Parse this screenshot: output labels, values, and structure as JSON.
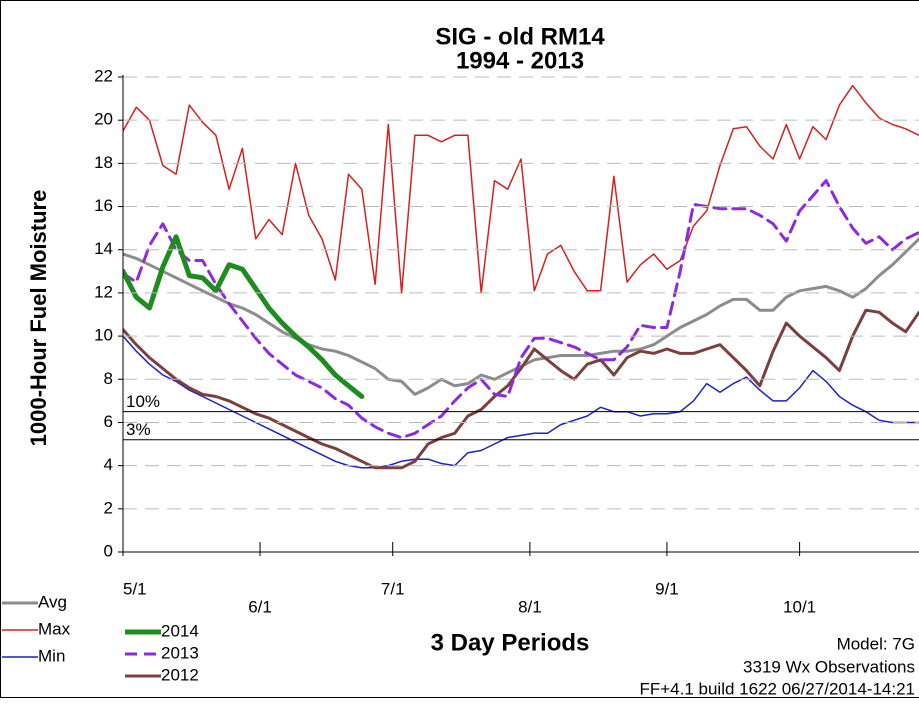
{
  "chart_data": {
    "type": "line",
    "title": "SIG - old RM14",
    "subtitle": "1994 - 2013",
    "y_label": "1000-Hour Fuel Moisture",
    "x_label": "3 Day Periods",
    "annotations": [
      "Model: 7G",
      "3319 Wx Observations",
      "FF+4.1 build 1622 06/27/2014-14:21"
    ],
    "x": [
      0,
      1,
      2,
      3,
      4,
      5,
      6,
      7,
      8,
      9,
      10,
      11,
      12,
      13,
      14,
      15,
      16,
      17,
      18,
      19,
      20,
      21,
      22,
      23,
      24,
      25,
      26,
      27,
      28,
      29,
      30,
      31,
      32,
      33,
      34,
      35,
      36,
      37,
      38,
      39,
      40,
      41,
      42,
      43,
      44,
      45,
      46,
      47,
      48,
      49,
      50,
      51,
      52,
      53,
      54,
      55,
      56,
      57,
      58,
      59,
      60
    ],
    "xlim": [
      0,
      60
    ],
    "xticks": [
      {
        "value": 0,
        "label": "5/1"
      },
      {
        "value": 10.33,
        "label": "6/1"
      },
      {
        "value": 20.33,
        "label": "7/1"
      },
      {
        "value": 30.67,
        "label": "8/1"
      },
      {
        "value": 41,
        "label": "9/1"
      },
      {
        "value": 51,
        "label": "10/1"
      }
    ],
    "ylim": [
      0,
      22
    ],
    "yticks": [
      0,
      2,
      4,
      6,
      8,
      10,
      12,
      14,
      16,
      18,
      20,
      22
    ],
    "grid": true,
    "legend": "bottom-left",
    "reference_lines": [
      {
        "value": 6.5,
        "label": "10%"
      },
      {
        "value": 5.2,
        "label": "3%"
      }
    ],
    "series": [
      {
        "name": "Avg",
        "color": "#8c8c8c",
        "width": 3,
        "dash": false,
        "values": [
          13.8,
          13.6,
          13.3,
          13.0,
          12.7,
          12.4,
          12.1,
          11.8,
          11.5,
          11.3,
          11.0,
          10.6,
          10.2,
          9.9,
          9.6,
          9.4,
          9.3,
          9.1,
          8.8,
          8.5,
          8.0,
          7.9,
          7.3,
          7.6,
          8.0,
          7.7,
          7.8,
          8.2,
          8.0,
          8.3,
          8.6,
          8.9,
          9.0,
          9.1,
          9.1,
          9.1,
          9.2,
          9.3,
          9.3,
          9.4,
          9.6,
          10.0,
          10.4,
          10.7,
          11.0,
          11.4,
          11.7,
          11.7,
          11.2,
          11.2,
          11.8,
          12.1,
          12.2,
          12.3,
          12.1,
          11.8,
          12.2,
          12.8,
          13.3,
          13.9,
          14.5
        ]
      },
      {
        "name": "Max",
        "color": "#d42020",
        "width": 1.5,
        "dash": false,
        "values": [
          19.5,
          20.6,
          20,
          17.9,
          17.5,
          20.7,
          19.9,
          19.3,
          16.8,
          18.7,
          14.5,
          15.4,
          14.7,
          18,
          15.6,
          14.5,
          12.6,
          17.5,
          16.8,
          12.4,
          19.8,
          12,
          19.3,
          19.3,
          19,
          19.3,
          19.3,
          12,
          17.2,
          16.8,
          18.2,
          12.1,
          13.8,
          14.2,
          13,
          12.1,
          12.1,
          17.4,
          12.5,
          13.3,
          13.8,
          13.1,
          13.5,
          15.1,
          15.8,
          17.9,
          19.6,
          19.7,
          18.8,
          18.2,
          19.8,
          18.2,
          19.7,
          19.1,
          20.7,
          21.6,
          20.8,
          20.1,
          19.8,
          19.6,
          19.3
        ]
      },
      {
        "name": "Min",
        "color": "#1c22c4",
        "width": 1.5,
        "dash": false,
        "values": [
          10.0,
          9.3,
          8.7,
          8.2,
          7.9,
          7.5,
          7.2,
          6.9,
          6.6,
          6.3,
          6.0,
          5.7,
          5.4,
          5.1,
          4.8,
          4.5,
          4.2,
          4.0,
          3.9,
          3.9,
          4.0,
          4.2,
          4.3,
          4.3,
          4.1,
          4.0,
          4.6,
          4.7,
          5.0,
          5.3,
          5.4,
          5.5,
          5.5,
          5.9,
          6.1,
          6.3,
          6.7,
          6.5,
          6.5,
          6.3,
          6.4,
          6.4,
          6.5,
          7.0,
          7.8,
          7.4,
          7.8,
          8.1,
          7.5,
          7.0,
          7.0,
          7.6,
          8.4,
          7.9,
          7.2,
          6.8,
          6.5,
          6.1,
          6.0,
          6.0,
          6.0
        ]
      },
      {
        "name": "2014",
        "color": "#1e8c1e",
        "width": 5,
        "dash": false,
        "values": [
          13.0,
          11.8,
          11.3,
          13.2,
          14.6,
          12.8,
          12.7,
          12.1,
          13.3,
          13.1,
          12.2,
          11.3,
          10.6,
          10.0,
          9.5,
          8.9,
          8.2,
          7.7,
          7.2,
          null,
          null,
          null,
          null,
          null,
          null,
          null,
          null,
          null,
          null,
          null,
          null,
          null,
          null,
          null,
          null,
          null,
          null,
          null,
          null,
          null,
          null,
          null,
          null,
          null,
          null,
          null,
          null,
          null,
          null,
          null,
          null,
          null,
          null,
          null,
          null,
          null,
          null,
          null,
          null,
          null,
          null
        ]
      },
      {
        "name": "2013",
        "color": "#8a2be2",
        "width": 3,
        "dash": true,
        "values": [
          12.9,
          12.5,
          14.2,
          15.2,
          14.0,
          13.5,
          13.5,
          12.4,
          11.5,
          10.7,
          9.9,
          9.2,
          8.7,
          8.2,
          7.9,
          7.6,
          7.1,
          6.8,
          6.2,
          5.8,
          5.5,
          5.3,
          5.5,
          5.9,
          6.3,
          7.0,
          7.6,
          8.0,
          7.3,
          7.2,
          9.0,
          9.9,
          9.9,
          9.7,
          9.5,
          9.2,
          8.9,
          8.9,
          9.5,
          10.5,
          10.4,
          10.4,
          13.0,
          16.1,
          16.0,
          15.9,
          15.9,
          15.9,
          15.6,
          15.2,
          14.4,
          15.8,
          16.5,
          17.2,
          16.0,
          15.0,
          14.3,
          14.6,
          14.0,
          14.5,
          14.8
        ]
      },
      {
        "name": "2012",
        "color": "#7b3f3f",
        "width": 3,
        "dash": false,
        "values": [
          10.3,
          9.6,
          9.0,
          8.5,
          8.0,
          7.6,
          7.3,
          7.2,
          7.0,
          6.7,
          6.4,
          6.2,
          5.9,
          5.6,
          5.3,
          5.0,
          4.8,
          4.5,
          4.2,
          3.9,
          3.9,
          3.9,
          4.2,
          5.0,
          5.3,
          5.5,
          6.3,
          6.6,
          7.2,
          7.7,
          8.5,
          9.4,
          8.9,
          8.4,
          8.0,
          8.7,
          8.9,
          8.2,
          9.0,
          9.3,
          9.2,
          9.4,
          9.2,
          9.2,
          9.4,
          9.6,
          9.0,
          8.4,
          7.7,
          9.3,
          10.6,
          10.0,
          9.5,
          9.0,
          8.4,
          10.0,
          11.2,
          11.1,
          10.6,
          10.2,
          11.1
        ]
      }
    ]
  }
}
